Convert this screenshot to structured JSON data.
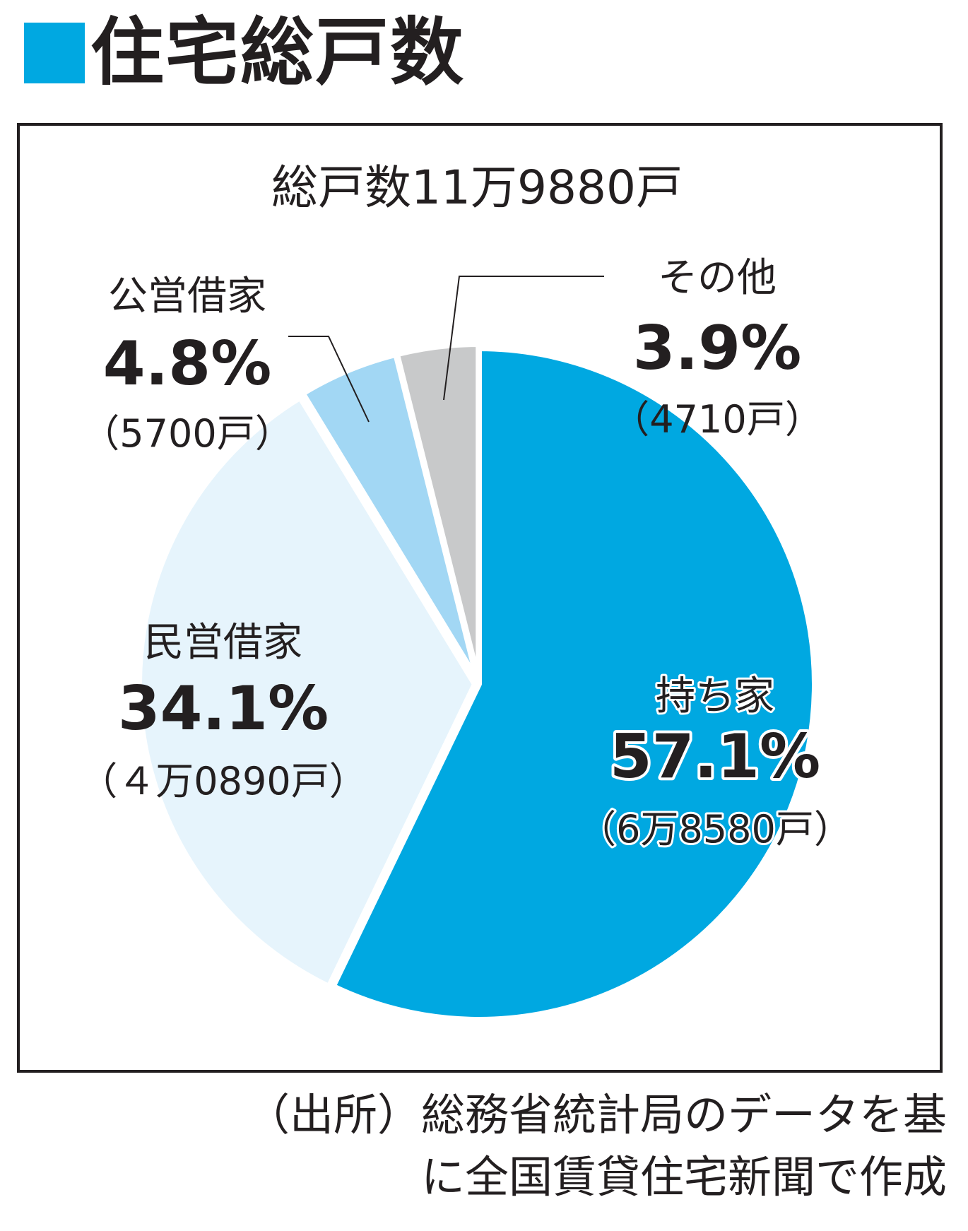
{
  "title": "住宅総戸数",
  "chart_data": {
    "type": "pie",
    "total_label": "総戸数11万9880戸",
    "slices": [
      {
        "name": "持ち家",
        "percent_label": "57.1%",
        "count_label": "（6万8580戸）",
        "value": 57.1,
        "count": 68580,
        "color": "#00a8e1"
      },
      {
        "name": "民営借家",
        "percent_label": "34.1%",
        "count_label": "（４万0890戸）",
        "value": 34.1,
        "count": 40890,
        "color": "#e6f4fc"
      },
      {
        "name": "公営借家",
        "percent_label": "4.8%",
        "count_label": "（5700戸）",
        "value": 4.8,
        "count": 5700,
        "color": "#a2d7f4"
      },
      {
        "name": "その他",
        "percent_label": "3.9%",
        "count_label": "（4710戸）",
        "value": 3.9,
        "count": 4710,
        "color": "#c8c9ca"
      }
    ]
  },
  "source": {
    "line1": "（出所）総務省統計局のデータを基",
    "line2": "に全国賃貸住宅新聞で作成"
  }
}
